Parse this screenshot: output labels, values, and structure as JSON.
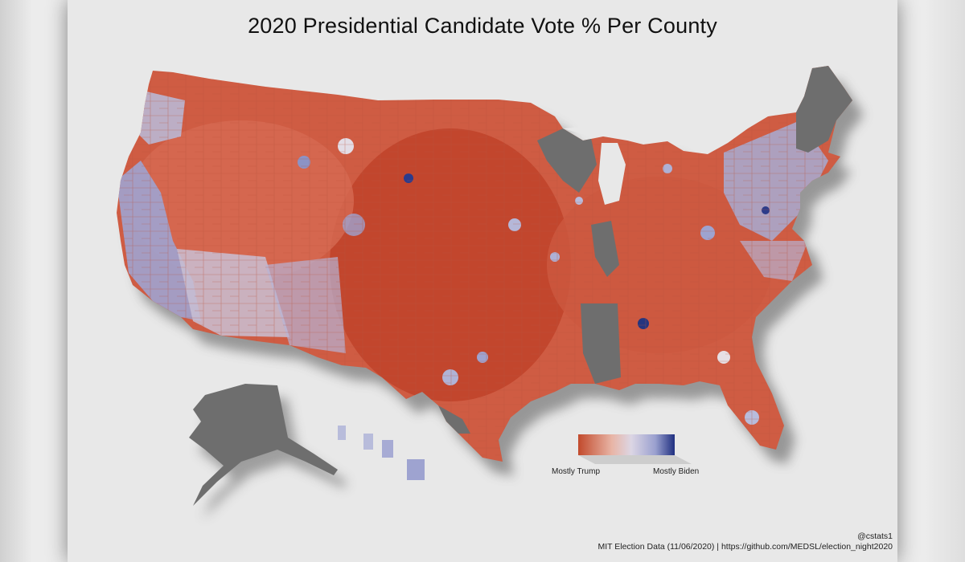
{
  "title": "2020 Presidential Candidate Vote % Per County",
  "map": {
    "region": "United States (contiguous + Alaska)",
    "unit": "county",
    "colors": {
      "trump_strong": "#c0442a",
      "trump_mid": "#d9705a",
      "trump_light": "#e9a392",
      "neutral": "#e4d8dc",
      "biden_light": "#b7bbd9",
      "biden_mid": "#8c93c6",
      "biden_strong": "#2a3a8a",
      "no_data": "#6e6e6e",
      "background": "#e8e8e8"
    }
  },
  "legend": {
    "low_label": "Mostly Trump",
    "high_label": "Mostly Biden",
    "gradient": [
      "#c24a2c",
      "#e8b5a6",
      "#dcd6e4",
      "#9aa0cf",
      "#1f2f80"
    ]
  },
  "credits": {
    "handle": "@cstats1",
    "source": "MIT Election Data (11/06/2020) | https://github.com/MEDSL/election_night2020"
  }
}
